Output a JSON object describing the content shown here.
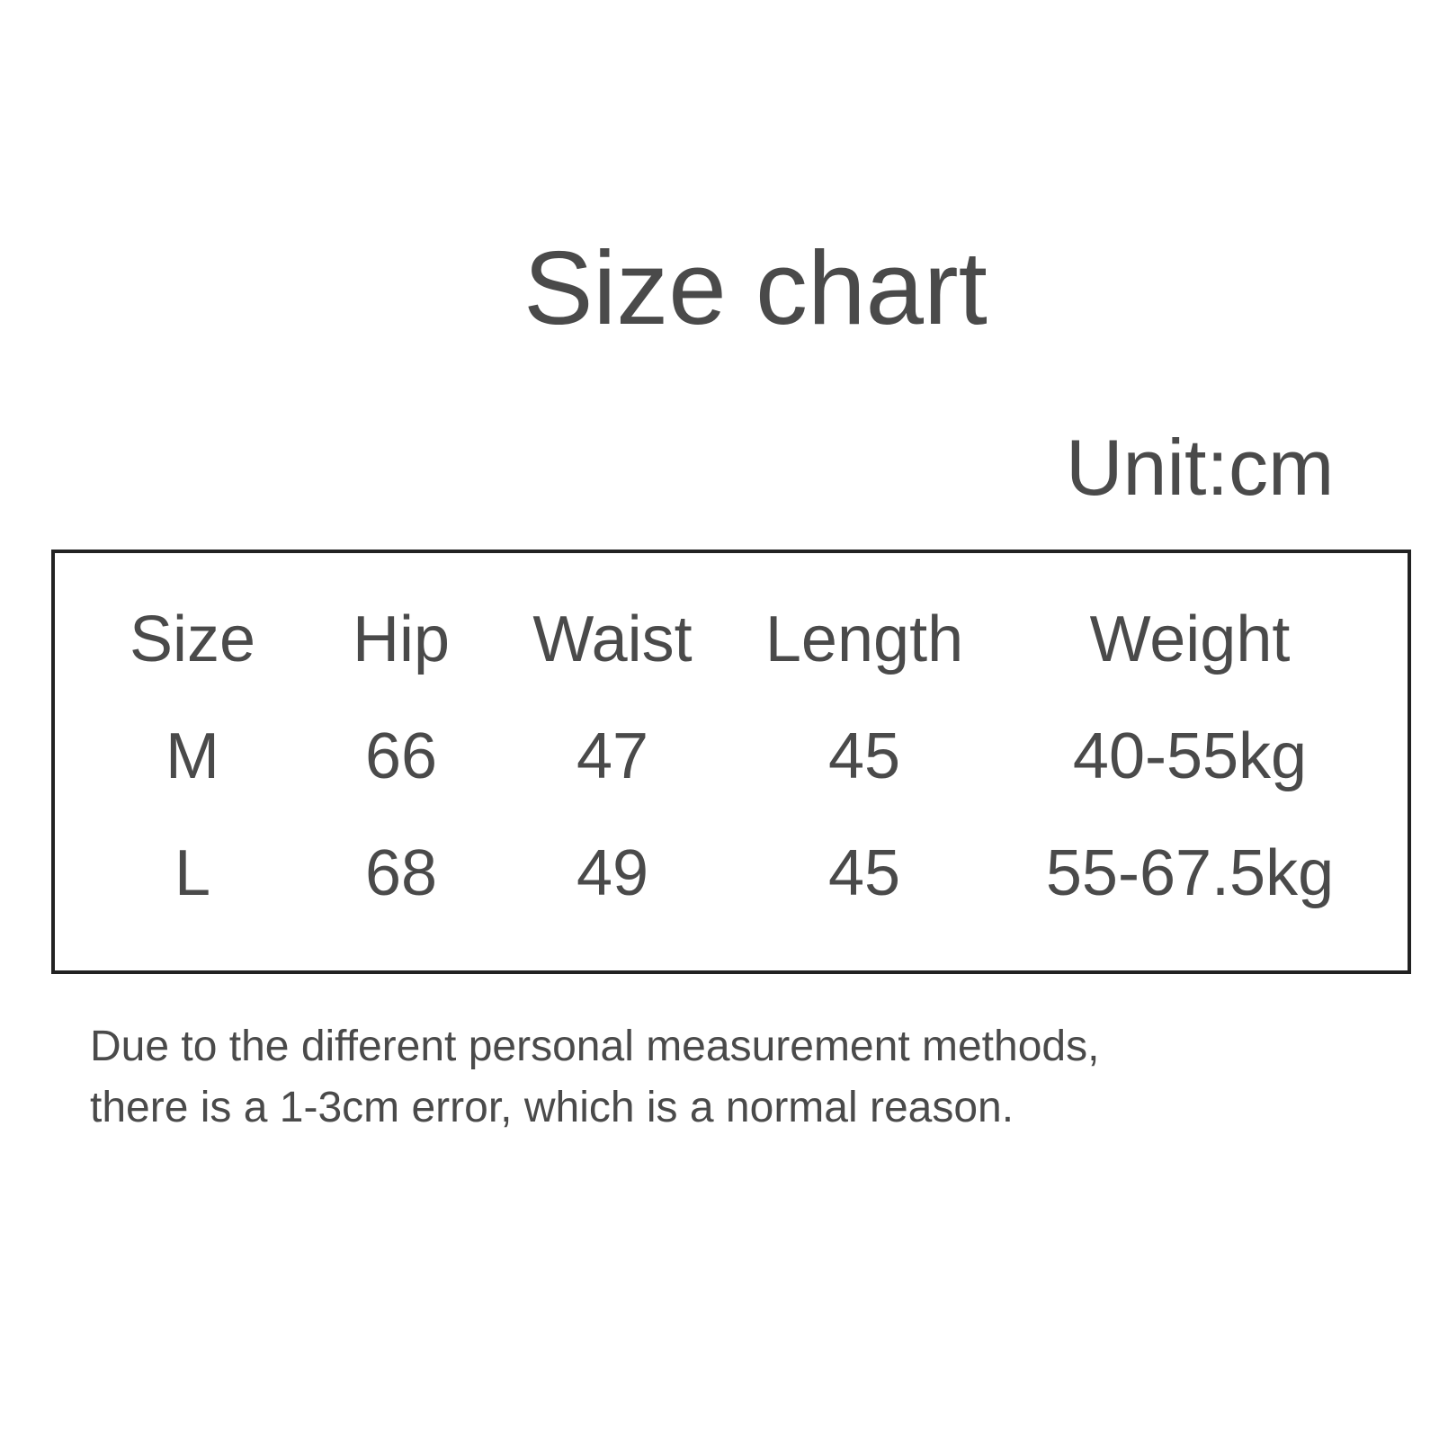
{
  "title": "Size chart",
  "unit": "Unit:cm",
  "table": {
    "headers": [
      "Size",
      "Hip",
      "Waist",
      "Length",
      "Weight"
    ],
    "rows": [
      [
        "M",
        "66",
        "47",
        "45",
        "40-55kg"
      ],
      [
        "L",
        "68",
        "49",
        "45",
        "55-67.5kg"
      ]
    ]
  },
  "note": {
    "line1": "Due to the different personal measurement methods,",
    "line2": "there is a 1-3cm error, which is a normal reason."
  }
}
